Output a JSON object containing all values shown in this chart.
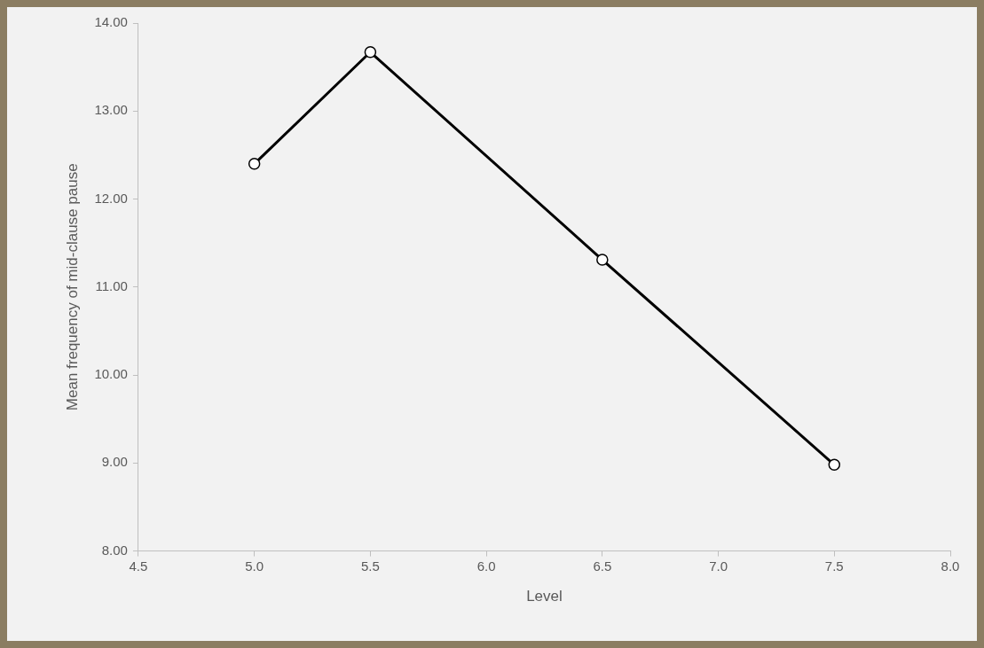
{
  "chart_data": {
    "type": "line",
    "xlabel": "Level",
    "ylabel": "Mean frequency of mid-clause pause",
    "x": [
      5.0,
      5.5,
      6.5,
      7.5
    ],
    "series": [
      {
        "color": "#000000",
        "values": [
          12.4,
          13.67,
          11.31,
          8.98
        ]
      }
    ],
    "xlim": [
      4.5,
      8.0
    ],
    "xticks": [
      {
        "value": 4.5,
        "label": "4.5"
      },
      {
        "value": 5.0,
        "label": "5.0"
      },
      {
        "value": 5.5,
        "label": "5.5"
      },
      {
        "value": 6.0,
        "label": "6.0"
      },
      {
        "value": 6.5,
        "label": "6.5"
      },
      {
        "value": 7.0,
        "label": "7.0"
      },
      {
        "value": 7.5,
        "label": "7.5"
      },
      {
        "value": 8.0,
        "label": "8.0"
      }
    ],
    "ylim": [
      8,
      14
    ],
    "yticks": [
      {
        "value": 8,
        "label": "8.00"
      },
      {
        "value": 9,
        "label": "9.00"
      },
      {
        "value": 10,
        "label": "10.00"
      },
      {
        "value": 11,
        "label": "11.00"
      },
      {
        "value": 12,
        "label": "12.00"
      },
      {
        "value": 13,
        "label": "13.00"
      },
      {
        "value": 14,
        "label": "14.00"
      }
    ],
    "marker": "circle",
    "line_style": "solid",
    "legend": false,
    "grid": false
  }
}
